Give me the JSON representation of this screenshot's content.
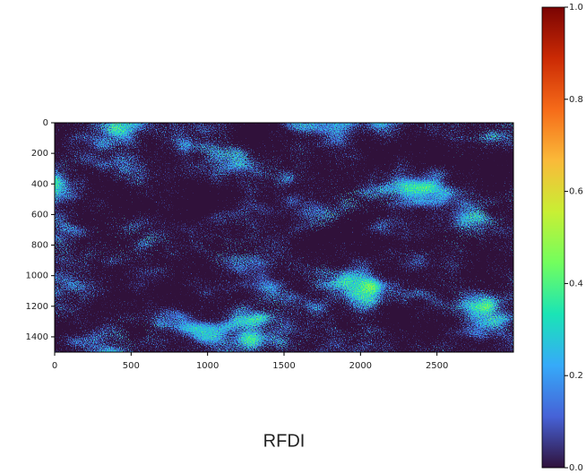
{
  "chart_data": {
    "type": "image",
    "title": "RFDI",
    "colormap": "turbo",
    "xlim": [
      0,
      3000
    ],
    "xticks": [
      0,
      500,
      1000,
      1500,
      2000,
      2500
    ],
    "ylim": [
      1500,
      0
    ],
    "yticks": [
      0,
      200,
      400,
      600,
      800,
      1000,
      1200,
      1400
    ],
    "clim": [
      0,
      1
    ],
    "cticks": [
      {
        "value": 0,
        "label": "0.0"
      },
      {
        "value": 0.2,
        "label": "0.2"
      },
      {
        "value": 0.4,
        "label": "0.4"
      },
      {
        "value": 0.6,
        "label": "0.6"
      },
      {
        "value": 0.8,
        "label": "0.8"
      },
      {
        "value": 1,
        "label": "1.0"
      }
    ]
  }
}
